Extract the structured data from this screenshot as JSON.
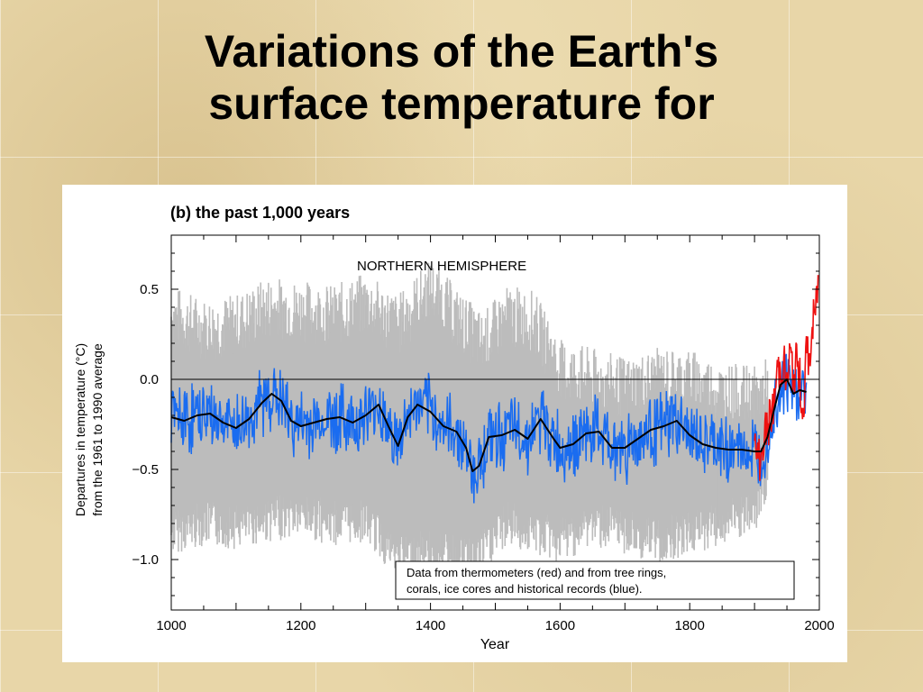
{
  "slide": {
    "title_line1": "Variations of the Earth's",
    "title_line2": "surface temperature for"
  },
  "chart_data": {
    "type": "line",
    "title": "(b) the past 1,000 years",
    "annotation": "NORTHERN HEMISPHERE",
    "xlabel": "Year",
    "ylabel_line1": "Departures in temperature (°C)",
    "ylabel_line2": "from the 1961 to 1990 average",
    "xlim": [
      1000,
      2000
    ],
    "ylim": [
      -1.28,
      0.8
    ],
    "xticks": [
      1000,
      1200,
      1400,
      1600,
      1800,
      2000
    ],
    "xtick_labels": [
      "1000",
      "1200",
      "1400",
      "1600",
      "1800",
      "2000"
    ],
    "yticks": [
      0.5,
      0.0,
      -0.5,
      -1.0
    ],
    "ytick_labels": [
      "0.5",
      "0.0",
      "−0.5",
      "−1.0"
    ],
    "zero_line": 0.0,
    "grid": false,
    "legend_position": "bottom-right",
    "legend_lines": [
      "Data from thermometers (red) and from tree rings,",
      "corals, ice cores and historical records (blue)."
    ],
    "colors": {
      "smoothed": "#000000",
      "proxy": "#1a6cf0",
      "thermometer": "#ee1111",
      "uncertainty": "#bcbcbc"
    },
    "smoothed": {
      "x": [
        1000,
        1020,
        1040,
        1060,
        1080,
        1100,
        1120,
        1140,
        1155,
        1170,
        1185,
        1200,
        1220,
        1240,
        1260,
        1280,
        1300,
        1320,
        1335,
        1350,
        1365,
        1380,
        1400,
        1420,
        1440,
        1455,
        1465,
        1475,
        1490,
        1510,
        1530,
        1550,
        1570,
        1590,
        1600,
        1620,
        1640,
        1660,
        1680,
        1700,
        1720,
        1740,
        1760,
        1780,
        1800,
        1820,
        1840,
        1860,
        1880,
        1900,
        1910,
        1920,
        1930,
        1940,
        1950,
        1960,
        1970,
        1980
      ],
      "y": [
        -0.21,
        -0.23,
        -0.2,
        -0.19,
        -0.24,
        -0.27,
        -0.22,
        -0.13,
        -0.08,
        -0.12,
        -0.23,
        -0.26,
        -0.24,
        -0.22,
        -0.21,
        -0.24,
        -0.2,
        -0.14,
        -0.26,
        -0.37,
        -0.21,
        -0.14,
        -0.18,
        -0.26,
        -0.29,
        -0.38,
        -0.51,
        -0.48,
        -0.32,
        -0.31,
        -0.28,
        -0.33,
        -0.22,
        -0.33,
        -0.38,
        -0.36,
        -0.3,
        -0.29,
        -0.38,
        -0.38,
        -0.33,
        -0.28,
        -0.26,
        -0.23,
        -0.31,
        -0.36,
        -0.38,
        -0.39,
        -0.39,
        -0.4,
        -0.4,
        -0.32,
        -0.17,
        -0.03,
        0.0,
        -0.08,
        -0.06,
        -0.07
      ]
    },
    "proxy_range": {
      "x": [
        1000,
        1050,
        1100,
        1150,
        1200,
        1250,
        1300,
        1350,
        1400,
        1450,
        1480,
        1520,
        1560,
        1600,
        1650,
        1700,
        1750,
        1800,
        1850,
        1900,
        1920
      ],
      "upper": [
        0.35,
        0.28,
        0.3,
        0.4,
        0.38,
        0.35,
        0.42,
        0.3,
        0.5,
        0.3,
        0.2,
        0.35,
        0.32,
        0.05,
        0.0,
        -0.05,
        0.0,
        0.0,
        -0.08,
        -0.1,
        -0.05
      ],
      "lower": [
        -0.85,
        -0.8,
        -0.82,
        -0.78,
        -0.75,
        -0.8,
        -0.78,
        -1.0,
        -0.95,
        -1.0,
        -0.95,
        -0.8,
        -0.85,
        -0.9,
        -0.8,
        -0.85,
        -0.9,
        -0.85,
        -0.8,
        -0.75,
        -0.55
      ]
    },
    "thermometer": {
      "x": [
        1900,
        1910,
        1915,
        1920,
        1925,
        1930,
        1935,
        1940,
        1945,
        1950,
        1955,
        1960,
        1965,
        1970,
        1975,
        1980,
        1985,
        1990,
        1995,
        1998
      ],
      "y": [
        -0.4,
        -0.45,
        -0.3,
        -0.28,
        -0.2,
        -0.15,
        0.05,
        0.05,
        0.1,
        -0.05,
        0.15,
        0.0,
        0.1,
        0.0,
        -0.2,
        0.15,
        0.1,
        0.3,
        0.4,
        0.55
      ]
    }
  }
}
